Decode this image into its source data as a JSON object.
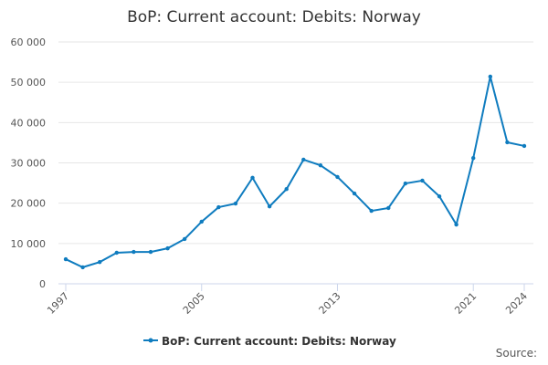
{
  "chart_data": {
    "type": "line",
    "title": "BoP: Current account: Debits: Norway",
    "x": [
      1997,
      1998,
      1999,
      2000,
      2001,
      2002,
      2003,
      2004,
      2005,
      2006,
      2007,
      2008,
      2009,
      2010,
      2011,
      2012,
      2013,
      2014,
      2015,
      2016,
      2017,
      2018,
      2019,
      2020,
      2021,
      2022,
      2023,
      2024
    ],
    "series": [
      {
        "name": "BoP: Current account: Debits: Norway",
        "color": "#0f7cbf",
        "values": [
          6100,
          4100,
          5400,
          7700,
          7900,
          7900,
          8800,
          11100,
          15400,
          19000,
          19900,
          26300,
          19200,
          23500,
          30800,
          29400,
          26500,
          22400,
          18100,
          18800,
          24900,
          25600,
          21700,
          14700,
          31200,
          51400,
          35100,
          34200
        ]
      }
    ],
    "xlim": [
      1997,
      2024
    ],
    "xticks": [
      1997,
      2005,
      2013,
      2021,
      2024
    ],
    "ylim": [
      0,
      60000
    ],
    "yticks": [
      0,
      {
        "value": 10000,
        "label": "10 000"
      },
      {
        "value": 20000,
        "label": "20 000"
      },
      {
        "value": 30000,
        "label": "30 000"
      },
      {
        "value": 40000,
        "label": "40 000"
      },
      {
        "value": 50000,
        "label": "50 000"
      },
      {
        "value": 60000,
        "label": "60 000"
      }
    ],
    "grid": true,
    "source": "Source:"
  }
}
